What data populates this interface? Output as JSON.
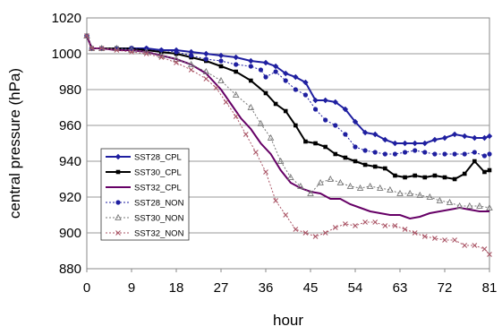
{
  "chart_data": {
    "type": "line",
    "title": "",
    "xlabel": "hour",
    "ylabel": "central pressure (hPa)",
    "xlim": [
      0,
      81
    ],
    "ylim": [
      880,
      1020
    ],
    "x_ticks": [
      "0",
      "9",
      "18",
      "27",
      "36",
      "45",
      "54",
      "63",
      "72",
      "81"
    ],
    "y_ticks": [
      "880",
      "900",
      "920",
      "940",
      "960",
      "980",
      "1000",
      "1020"
    ],
    "grid": "horizontal",
    "legend_position": "left-middle",
    "series": [
      {
        "name": "SST28_CPL",
        "color": "#1f1fa0",
        "line": "solid",
        "marker": "diamond",
        "points": [
          [
            0,
            1010
          ],
          [
            1,
            1003
          ],
          [
            3,
            1003
          ],
          [
            6,
            1003
          ],
          [
            9,
            1003
          ],
          [
            12,
            1003
          ],
          [
            15,
            1002
          ],
          [
            18,
            1002
          ],
          [
            21,
            1001
          ],
          [
            24,
            1000
          ],
          [
            27,
            999
          ],
          [
            30,
            998
          ],
          [
            33,
            996
          ],
          [
            36,
            995
          ],
          [
            38,
            993
          ],
          [
            40,
            989
          ],
          [
            42,
            987
          ],
          [
            44,
            984
          ],
          [
            46,
            974
          ],
          [
            48,
            974
          ],
          [
            50,
            973
          ],
          [
            52,
            969
          ],
          [
            54,
            962
          ],
          [
            56,
            956
          ],
          [
            58,
            955
          ],
          [
            60,
            952
          ],
          [
            62,
            950
          ],
          [
            64,
            950
          ],
          [
            66,
            950
          ],
          [
            68,
            950
          ],
          [
            70,
            952
          ],
          [
            72,
            953
          ],
          [
            74,
            955
          ],
          [
            76,
            954
          ],
          [
            78,
            953
          ],
          [
            80,
            953
          ],
          [
            81,
            954
          ]
        ]
      },
      {
        "name": "SST30_CPL",
        "color": "#000000",
        "line": "solid",
        "marker": "square",
        "points": [
          [
            0,
            1010
          ],
          [
            1,
            1003
          ],
          [
            3,
            1003
          ],
          [
            6,
            1003
          ],
          [
            9,
            1003
          ],
          [
            12,
            1002
          ],
          [
            15,
            1001
          ],
          [
            18,
            1000
          ],
          [
            21,
            998
          ],
          [
            24,
            996
          ],
          [
            27,
            993
          ],
          [
            30,
            990
          ],
          [
            33,
            985
          ],
          [
            36,
            978
          ],
          [
            38,
            972
          ],
          [
            40,
            968
          ],
          [
            42,
            960
          ],
          [
            44,
            951
          ],
          [
            46,
            950
          ],
          [
            48,
            948
          ],
          [
            50,
            944
          ],
          [
            52,
            942
          ],
          [
            54,
            940
          ],
          [
            56,
            938
          ],
          [
            58,
            937
          ],
          [
            60,
            936
          ],
          [
            62,
            932
          ],
          [
            64,
            931
          ],
          [
            66,
            932
          ],
          [
            68,
            931
          ],
          [
            70,
            932
          ],
          [
            72,
            931
          ],
          [
            74,
            930
          ],
          [
            76,
            933
          ],
          [
            78,
            940
          ],
          [
            80,
            934
          ],
          [
            81,
            935
          ]
        ]
      },
      {
        "name": "SST32_CPL",
        "color": "#660066",
        "line": "solid",
        "marker": "none",
        "points": [
          [
            0,
            1010
          ],
          [
            1,
            1003
          ],
          [
            3,
            1003
          ],
          [
            6,
            1002
          ],
          [
            9,
            1002
          ],
          [
            12,
            1001
          ],
          [
            15,
            999
          ],
          [
            18,
            997
          ],
          [
            21,
            994
          ],
          [
            24,
            989
          ],
          [
            27,
            980
          ],
          [
            29,
            972
          ],
          [
            31,
            964
          ],
          [
            33,
            958
          ],
          [
            35,
            950
          ],
          [
            37,
            944
          ],
          [
            39,
            935
          ],
          [
            41,
            928
          ],
          [
            43,
            925
          ],
          [
            45,
            923
          ],
          [
            47,
            922
          ],
          [
            49,
            919
          ],
          [
            51,
            919
          ],
          [
            53,
            916
          ],
          [
            55,
            914
          ],
          [
            57,
            912
          ],
          [
            59,
            911
          ],
          [
            61,
            910
          ],
          [
            63,
            910
          ],
          [
            65,
            908
          ],
          [
            67,
            909
          ],
          [
            69,
            911
          ],
          [
            71,
            912
          ],
          [
            73,
            913
          ],
          [
            75,
            914
          ],
          [
            77,
            913
          ],
          [
            79,
            912
          ],
          [
            81,
            912
          ]
        ]
      },
      {
        "name": "SST28_NON",
        "color": "#1f1fa0",
        "line": "dotted",
        "marker": "circle",
        "points": [
          [
            0,
            1010
          ],
          [
            1,
            1003
          ],
          [
            3,
            1003
          ],
          [
            6,
            1003
          ],
          [
            9,
            1003
          ],
          [
            12,
            1003
          ],
          [
            15,
            1002
          ],
          [
            18,
            1001
          ],
          [
            21,
            999
          ],
          [
            24,
            997
          ],
          [
            27,
            996
          ],
          [
            30,
            994
          ],
          [
            33,
            993
          ],
          [
            35,
            991
          ],
          [
            36,
            987
          ],
          [
            38,
            990
          ],
          [
            40,
            985
          ],
          [
            42,
            980
          ],
          [
            44,
            977
          ],
          [
            46,
            969
          ],
          [
            48,
            963
          ],
          [
            50,
            960
          ],
          [
            52,
            955
          ],
          [
            54,
            948
          ],
          [
            56,
            946
          ],
          [
            58,
            945
          ],
          [
            60,
            944
          ],
          [
            62,
            944
          ],
          [
            64,
            945
          ],
          [
            66,
            946
          ],
          [
            68,
            945
          ],
          [
            70,
            944
          ],
          [
            72,
            944
          ],
          [
            74,
            944
          ],
          [
            76,
            944
          ],
          [
            78,
            945
          ],
          [
            80,
            943
          ],
          [
            81,
            944
          ]
        ]
      },
      {
        "name": "SST30_NON",
        "color": "#777777",
        "line": "dotted",
        "marker": "triangle",
        "points": [
          [
            0,
            1010
          ],
          [
            1,
            1003
          ],
          [
            3,
            1003
          ],
          [
            6,
            1003
          ],
          [
            9,
            1002
          ],
          [
            12,
            1001
          ],
          [
            15,
            999
          ],
          [
            18,
            997
          ],
          [
            21,
            994
          ],
          [
            24,
            990
          ],
          [
            27,
            985
          ],
          [
            30,
            977
          ],
          [
            33,
            970
          ],
          [
            35,
            961
          ],
          [
            37,
            953
          ],
          [
            39,
            940
          ],
          [
            41,
            931
          ],
          [
            43,
            926
          ],
          [
            45,
            922
          ],
          [
            47,
            928
          ],
          [
            49,
            930
          ],
          [
            51,
            928
          ],
          [
            53,
            926
          ],
          [
            55,
            925
          ],
          [
            57,
            926
          ],
          [
            59,
            925
          ],
          [
            61,
            924
          ],
          [
            63,
            922
          ],
          [
            65,
            922
          ],
          [
            67,
            921
          ],
          [
            69,
            920
          ],
          [
            71,
            918
          ],
          [
            73,
            917
          ],
          [
            75,
            915
          ],
          [
            77,
            915
          ],
          [
            79,
            915
          ],
          [
            81,
            914
          ]
        ]
      },
      {
        "name": "SST32_NON",
        "color": "#aa5566",
        "line": "dotted",
        "marker": "x",
        "points": [
          [
            0,
            1010
          ],
          [
            1,
            1003
          ],
          [
            3,
            1003
          ],
          [
            6,
            1002
          ],
          [
            9,
            1001
          ],
          [
            12,
            1000
          ],
          [
            15,
            998
          ],
          [
            18,
            995
          ],
          [
            21,
            991
          ],
          [
            24,
            986
          ],
          [
            26,
            981
          ],
          [
            28,
            973
          ],
          [
            30,
            965
          ],
          [
            32,
            955
          ],
          [
            34,
            945
          ],
          [
            36,
            934
          ],
          [
            38,
            918
          ],
          [
            40,
            910
          ],
          [
            42,
            902
          ],
          [
            44,
            900
          ],
          [
            46,
            898
          ],
          [
            48,
            900
          ],
          [
            50,
            903
          ],
          [
            52,
            905
          ],
          [
            54,
            904
          ],
          [
            56,
            906
          ],
          [
            58,
            906
          ],
          [
            60,
            904
          ],
          [
            62,
            904
          ],
          [
            64,
            902
          ],
          [
            66,
            900
          ],
          [
            68,
            898
          ],
          [
            70,
            897
          ],
          [
            72,
            896
          ],
          [
            74,
            896
          ],
          [
            76,
            893
          ],
          [
            78,
            893
          ],
          [
            80,
            891
          ],
          [
            81,
            888
          ]
        ]
      }
    ]
  }
}
